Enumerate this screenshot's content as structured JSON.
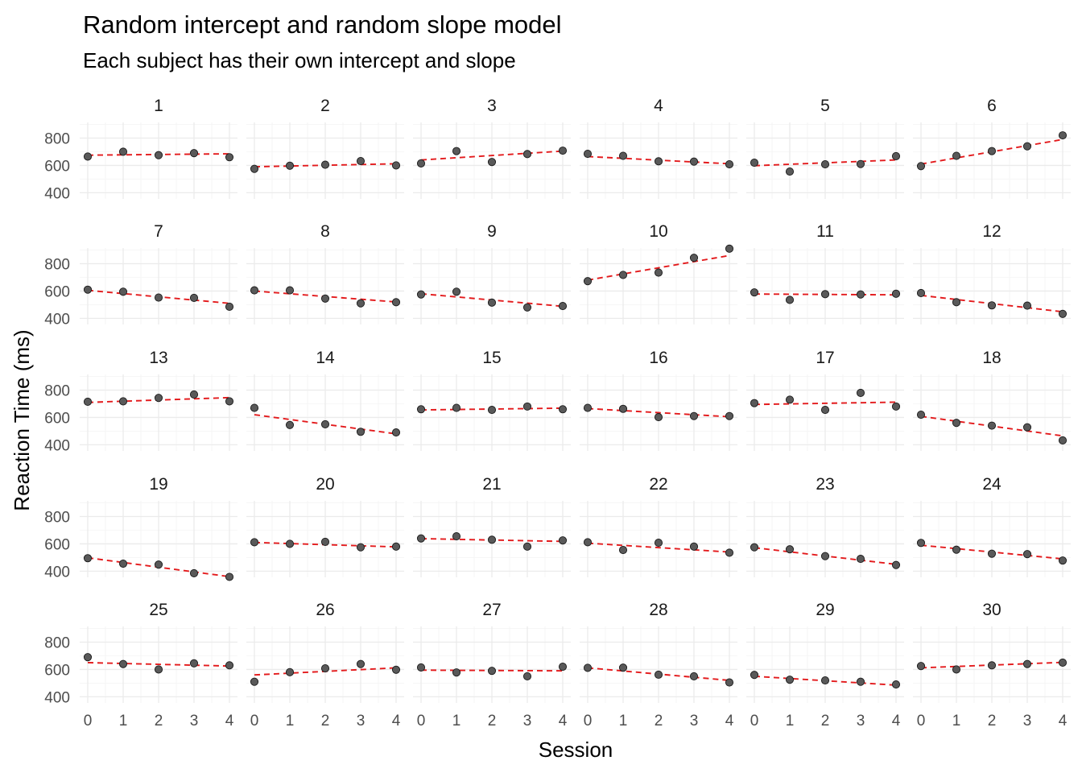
{
  "chart_data": {
    "type": "scatter",
    "title": "Random intercept and random slope model",
    "subtitle": "Each subject has their own intercept and slope",
    "xlabel": "Session",
    "ylabel": "Reaction Time (ms)",
    "x": [
      0,
      1,
      2,
      3,
      4
    ],
    "xticks": [
      0,
      1,
      2,
      3,
      4
    ],
    "xlim": [
      0,
      4
    ],
    "yticks": [
      400,
      600,
      800
    ],
    "ylim": [
      355,
      915
    ],
    "grid": true,
    "point_color": "#595959",
    "fit_color": "#e31a1c",
    "fit_style": "dashed",
    "facets": [
      {
        "label": "1",
        "points": [
          665,
          700,
          675,
          690,
          660
        ],
        "fit": [
          675,
          685
        ]
      },
      {
        "label": "2",
        "points": [
          575,
          598,
          605,
          632,
          600
        ],
        "fit": [
          590,
          612
        ]
      },
      {
        "label": "3",
        "points": [
          615,
          705,
          625,
          683,
          708
        ],
        "fit": [
          640,
          705
        ]
      },
      {
        "label": "4",
        "points": [
          685,
          670,
          630,
          628,
          608
        ],
        "fit": [
          665,
          612
        ]
      },
      {
        "label": "5",
        "points": [
          620,
          555,
          608,
          610,
          668
        ],
        "fit": [
          598,
          640
        ]
      },
      {
        "label": "6",
        "points": [
          595,
          670,
          705,
          740,
          820
        ],
        "fit": [
          610,
          790
        ]
      },
      {
        "label": "7",
        "points": [
          610,
          595,
          552,
          550,
          485
        ],
        "fit": [
          605,
          510
        ]
      },
      {
        "label": "8",
        "points": [
          605,
          605,
          545,
          510,
          518
        ],
        "fit": [
          600,
          520
        ]
      },
      {
        "label": "9",
        "points": [
          575,
          595,
          515,
          480,
          490
        ],
        "fit": [
          580,
          488
        ]
      },
      {
        "label": "10",
        "points": [
          672,
          718,
          735,
          843,
          910
        ],
        "fit": [
          680,
          860
        ]
      },
      {
        "label": "11",
        "points": [
          590,
          535,
          577,
          575,
          580
        ],
        "fit": [
          578,
          572
        ]
      },
      {
        "label": "12",
        "points": [
          585,
          518,
          495,
          493,
          433
        ],
        "fit": [
          568,
          448
        ]
      },
      {
        "label": "13",
        "points": [
          715,
          718,
          743,
          768,
          718
        ],
        "fit": [
          710,
          745
        ]
      },
      {
        "label": "14",
        "points": [
          670,
          545,
          550,
          495,
          490
        ],
        "fit": [
          620,
          480
        ]
      },
      {
        "label": "15",
        "points": [
          660,
          670,
          655,
          680,
          660
        ],
        "fit": [
          655,
          668
        ]
      },
      {
        "label": "16",
        "points": [
          670,
          663,
          602,
          610,
          610
        ],
        "fit": [
          665,
          605
        ]
      },
      {
        "label": "17",
        "points": [
          705,
          730,
          655,
          780,
          680
        ],
        "fit": [
          695,
          712
        ]
      },
      {
        "label": "18",
        "points": [
          620,
          560,
          540,
          528,
          432
        ],
        "fit": [
          608,
          465
        ]
      },
      {
        "label": "19",
        "points": [
          495,
          455,
          448,
          385,
          358
        ],
        "fit": [
          498,
          360
        ]
      },
      {
        "label": "20",
        "points": [
          612,
          600,
          615,
          575,
          580
        ],
        "fit": [
          610,
          578
        ]
      },
      {
        "label": "21",
        "points": [
          640,
          655,
          630,
          580,
          625
        ],
        "fit": [
          638,
          618
        ]
      },
      {
        "label": "22",
        "points": [
          612,
          555,
          608,
          580,
          535
        ],
        "fit": [
          605,
          540
        ]
      },
      {
        "label": "23",
        "points": [
          575,
          560,
          510,
          490,
          445
        ],
        "fit": [
          572,
          450
        ]
      },
      {
        "label": "24",
        "points": [
          607,
          557,
          528,
          525,
          478
        ],
        "fit": [
          590,
          490
        ]
      },
      {
        "label": "25",
        "points": [
          690,
          640,
          600,
          645,
          630
        ],
        "fit": [
          650,
          625
        ]
      },
      {
        "label": "26",
        "points": [
          510,
          580,
          608,
          640,
          598
        ],
        "fit": [
          560,
          612
        ]
      },
      {
        "label": "27",
        "points": [
          615,
          578,
          590,
          550,
          620
        ],
        "fit": [
          595,
          590
        ]
      },
      {
        "label": "28",
        "points": [
          612,
          613,
          562,
          550,
          505
        ],
        "fit": [
          612,
          520
        ]
      },
      {
        "label": "29",
        "points": [
          560,
          525,
          520,
          510,
          490
        ],
        "fit": [
          550,
          485
        ]
      },
      {
        "label": "30",
        "points": [
          625,
          600,
          630,
          640,
          650
        ],
        "fit": [
          612,
          652
        ]
      }
    ]
  }
}
